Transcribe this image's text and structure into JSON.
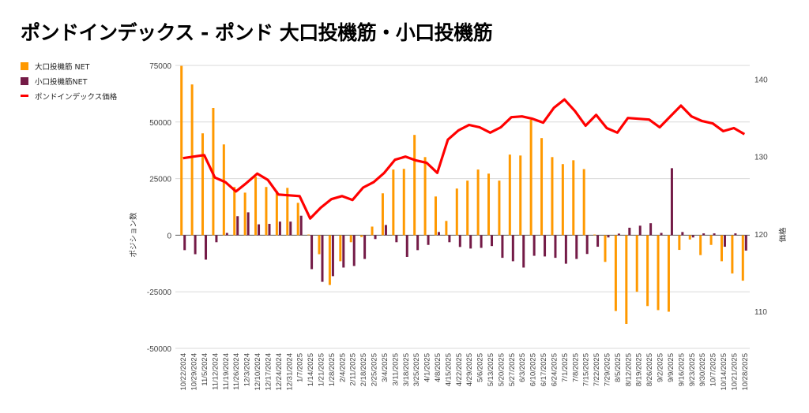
{
  "title": "ポンドインデックス - ポンド 大口投機筋・小口投機筋",
  "legend": [
    {
      "label": "大口投機筋  NET",
      "color": "#ff9900"
    },
    {
      "label": "小口投機筋NET",
      "color": "#741b47"
    },
    {
      "label": "ポンドインデックス価格",
      "color": "#ff0000"
    }
  ],
  "chart_data": {
    "type": "bar+line",
    "title": "ポンドインデックス - ポンド 大口投機筋・小口投機筋",
    "ylabel_left": "ポジション数",
    "ylabel_right": "価格",
    "ylim_left": [
      -50000,
      75000
    ],
    "yticks_left": [
      "75000",
      "50000",
      "25000",
      "0",
      "-25000",
      "-50000"
    ],
    "ylim_right": [
      105.2,
      141.8
    ],
    "yticks_right": [
      "140",
      "130",
      "120",
      "110"
    ],
    "grid": true,
    "legend_position": "top-left",
    "categories": [
      "10/22/2024",
      "10/29/2024",
      "11/5/2024",
      "11/12/2024",
      "11/19/2024",
      "11/26/2024",
      "12/3/2024",
      "12/10/2024",
      "12/17/2024",
      "12/24/2024",
      "12/31/2024",
      "1/7/2025",
      "1/14/2025",
      "1/21/2025",
      "1/28/2025",
      "2/4/2025",
      "2/11/2025",
      "2/18/2025",
      "2/25/2025",
      "3/4/2025",
      "3/11/2025",
      "3/18/2025",
      "3/25/2025",
      "4/1/2025",
      "4/8/2025",
      "4/15/2025",
      "4/22/2025",
      "4/29/2025",
      "5/6/2025",
      "5/13/2025",
      "5/20/2025",
      "5/27/2025",
      "6/3/2025",
      "6/10/2025",
      "6/17/2025",
      "6/24/2025",
      "7/1/2025",
      "7/8/2025",
      "7/15/2025",
      "7/22/2025",
      "7/29/2025",
      "8/5/2025",
      "8/12/2025",
      "8/19/2025",
      "8/26/2025",
      "9/2/2025",
      "9/9/2025",
      "9/16/2025",
      "9/23/2025",
      "9/30/2025",
      "10/7/2025",
      "10/14/2025",
      "10/21/2025",
      "10/28/2025"
    ],
    "series": [
      {
        "name": "大口投機筋  NET",
        "type": "bar",
        "axis": "left",
        "color": "#ff9900",
        "values": [
          74800,
          66600,
          45000,
          56200,
          40100,
          21300,
          18800,
          25800,
          21300,
          19500,
          20900,
          14300,
          300,
          -8400,
          -22000,
          -11500,
          -3100,
          -800,
          3800,
          18500,
          29000,
          29300,
          44300,
          34500,
          17100,
          6300,
          20600,
          24100,
          29000,
          27200,
          24100,
          35600,
          35200,
          51000,
          42900,
          34500,
          31400,
          33100,
          29200,
          300,
          -11800,
          -33500,
          -39200,
          -25000,
          -31300,
          -33100,
          -33800,
          -6500,
          -1900,
          -8800,
          -4300,
          -11500,
          -16900,
          -20100
        ]
      },
      {
        "name": "小口投機筋NET",
        "type": "bar",
        "axis": "left",
        "color": "#741b47",
        "values": [
          -6600,
          -8400,
          -10800,
          -3100,
          1000,
          8400,
          10100,
          4800,
          5000,
          6000,
          6000,
          8600,
          -15000,
          -20600,
          -18100,
          -14300,
          -13600,
          -10500,
          -1700,
          4500,
          -3100,
          -9600,
          -6600,
          -4300,
          1400,
          -3100,
          -5200,
          -5900,
          -5600,
          -4800,
          -10000,
          -11500,
          -14300,
          -9100,
          -9400,
          -10000,
          -12600,
          -10500,
          -8300,
          -5100,
          -1000,
          700,
          3300,
          4200,
          5300,
          1000,
          29600,
          1400,
          -1000,
          800,
          800,
          -5100,
          800,
          -6800
        ]
      },
      {
        "name": "ポンドインデックス価格",
        "type": "line",
        "axis": "right",
        "color": "#ff0000",
        "values": [
          129.8,
          130.0,
          130.2,
          127.3,
          126.7,
          125.5,
          126.6,
          127.8,
          127.0,
          125.1,
          125.0,
          124.9,
          122.0,
          123.4,
          124.5,
          124.9,
          124.4,
          126.0,
          126.7,
          127.9,
          129.6,
          130.0,
          129.5,
          129.2,
          127.9,
          132.2,
          133.4,
          134.1,
          133.8,
          133.1,
          133.8,
          135.1,
          135.2,
          134.9,
          134.4,
          136.3,
          137.4,
          135.9,
          134.0,
          135.4,
          133.7,
          133.1,
          135.0,
          134.9,
          134.8,
          133.8,
          135.2,
          136.6,
          135.2,
          134.6,
          134.3,
          133.3,
          133.7,
          132.9
        ]
      }
    ]
  }
}
